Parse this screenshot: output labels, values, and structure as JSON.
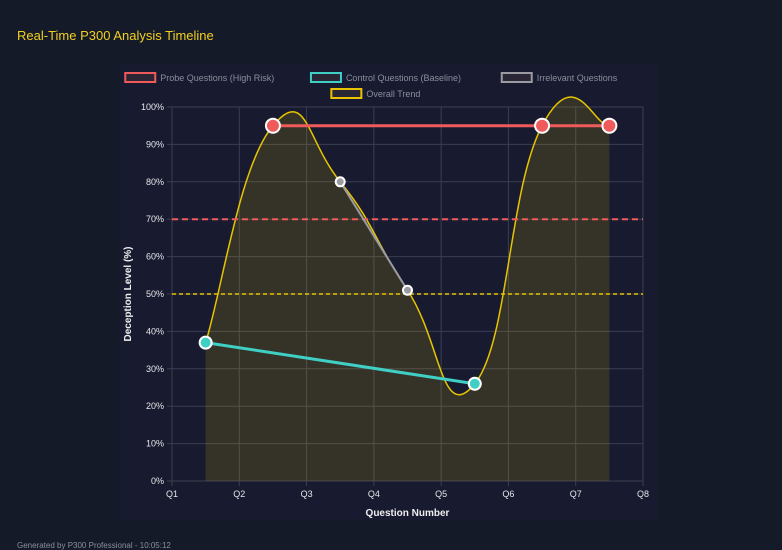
{
  "header": {
    "title": "Real-Time P300 Analysis Timeline"
  },
  "footer": {
    "text": "Generated by P300 Professional - 10:05:12"
  },
  "colors": {
    "background": "#151a29",
    "panel": "#181b2f",
    "title": "#f2cf1f",
    "probe": "#ef5b5b",
    "control": "#3fcfc4",
    "irrelevant": "#9a9aa2",
    "trend": "#e8c400",
    "grid": "#3b3e52"
  },
  "chart_data": {
    "type": "line",
    "xlabel": "Question Number",
    "ylabel": "Deception Level (%)",
    "xticks": [
      "Q1",
      "Q2",
      "Q3",
      "Q4",
      "Q5",
      "Q6",
      "Q7",
      "Q8"
    ],
    "xlim": [
      1,
      8
    ],
    "ylim": [
      0,
      100
    ],
    "yticks": [
      "0%",
      "10%",
      "20%",
      "30%",
      "40%",
      "50%",
      "60%",
      "70%",
      "80%",
      "90%",
      "100%"
    ],
    "grid": true,
    "legend_position": "top",
    "series": [
      {
        "name": "Probe Questions (High Risk)",
        "color": "#ef5b5b",
        "x": [
          2.5,
          6.5,
          7.5
        ],
        "y": [
          95,
          95,
          95
        ]
      },
      {
        "name": "Control Questions (Baseline)",
        "color": "#3fcfc4",
        "x": [
          1.5,
          5.5
        ],
        "y": [
          37,
          26
        ]
      },
      {
        "name": "Irrelevant Questions",
        "color": "#9a9aa2",
        "x": [
          3.5,
          4.5
        ],
        "y": [
          80,
          51
        ]
      },
      {
        "name": "Overall Trend",
        "color": "#e8c400",
        "x": [
          1.5,
          2.5,
          3.5,
          4.5,
          5.5,
          6.5,
          7.5
        ],
        "y": [
          37,
          95,
          80,
          51,
          26,
          95,
          95
        ],
        "fill": true,
        "smooth": true
      }
    ],
    "thresholds": [
      {
        "value": 70,
        "color": "#ef5b5b"
      },
      {
        "value": 50,
        "color": "#e8c400"
      }
    ]
  }
}
